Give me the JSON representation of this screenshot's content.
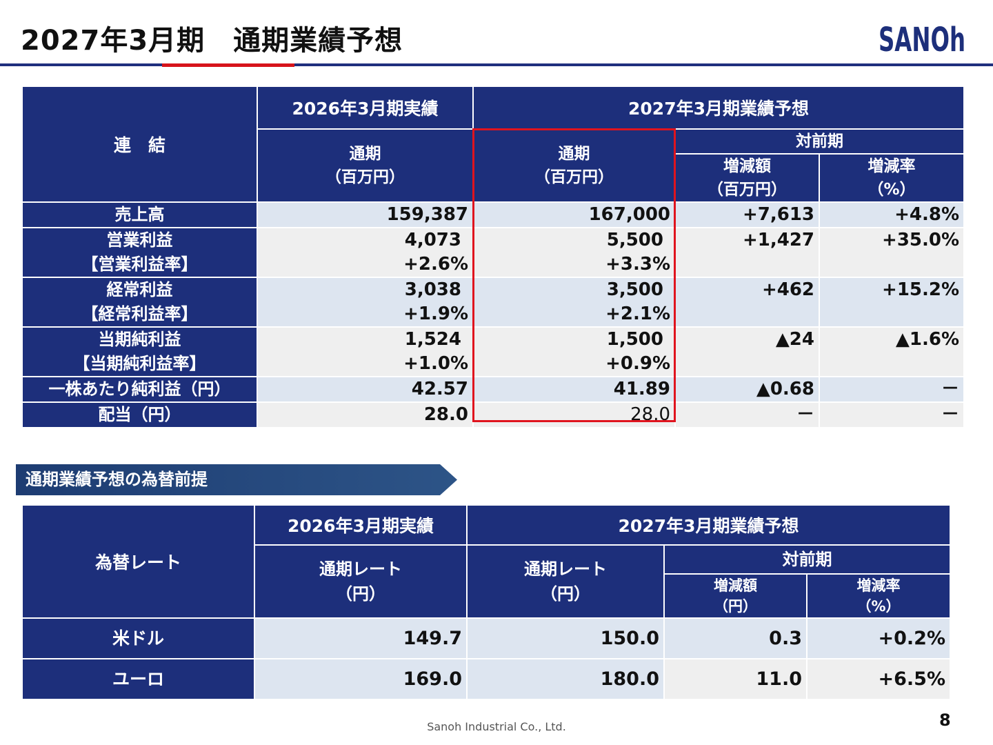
{
  "page": {
    "title": "2027年3月期　通期業績予想",
    "footer": "Sanoh Industrial Co., Ltd.",
    "page_number": "8"
  },
  "logo": {
    "text": "SANOH",
    "color": "#1d2f7b"
  },
  "colors": {
    "header_navy": "#1d2f7b",
    "accent_red": "#d7141b",
    "row_light_blue": "#dde5f0",
    "row_light_gray": "#efefef"
  },
  "forecast_table": {
    "corner": "連　結",
    "group_actual": "2026年3月期実績",
    "group_forecast": "2027年3月期業績予想",
    "sub_yoy": "対前期",
    "col_actual": [
      "通期",
      "（百万円）"
    ],
    "col_forecast": [
      "通期",
      "（百万円）"
    ],
    "col_change": [
      "増減額",
      "（百万円）"
    ],
    "col_rate": [
      "増減率",
      "（%）"
    ],
    "rows": [
      {
        "label": [
          "売上高"
        ],
        "actual": [
          "159,387"
        ],
        "forecast": [
          "167,000"
        ],
        "change": [
          "+7,613"
        ],
        "rate": [
          "+4.8%"
        ]
      },
      {
        "label": [
          "営業利益",
          "【営業利益率】"
        ],
        "actual": [
          "4,073",
          "+2.6%"
        ],
        "forecast": [
          "5,500",
          "+3.3%"
        ],
        "change": [
          "+1,427",
          ""
        ],
        "rate": [
          "+35.0%",
          ""
        ]
      },
      {
        "label": [
          "経常利益",
          "【経常利益率】"
        ],
        "actual": [
          "3,038",
          "+1.9%"
        ],
        "forecast": [
          "3,500",
          "+2.1%"
        ],
        "change": [
          "+462",
          ""
        ],
        "rate": [
          "+15.2%",
          ""
        ]
      },
      {
        "label": [
          "当期純利益",
          "【当期純利益率】"
        ],
        "actual": [
          "1,524",
          "+1.0%"
        ],
        "forecast": [
          "1,500",
          "+0.9%"
        ],
        "change": [
          "▲24",
          ""
        ],
        "rate": [
          "▲1.6%",
          ""
        ]
      },
      {
        "label": [
          "一株あたり純利益（円）"
        ],
        "actual": [
          "42.57"
        ],
        "forecast": [
          "41.89"
        ],
        "change": [
          "▲0.68"
        ],
        "rate": [
          "－"
        ]
      },
      {
        "label": [
          "配当（円）"
        ],
        "actual": [
          "28.0"
        ],
        "forecast": [
          "28.0"
        ],
        "change": [
          "－"
        ],
        "rate": [
          "－"
        ]
      }
    ]
  },
  "fx_section": {
    "banner": "通期業績予想の為替前提",
    "corner": "為替レート",
    "group_actual": "2026年3月期実績",
    "group_forecast": "2027年3月期業績予想",
    "sub_yoy": "対前期",
    "col_actual": [
      "通期レート",
      "（円）"
    ],
    "col_forecast": [
      "通期レート",
      "（円）"
    ],
    "col_change": [
      "増減額",
      "（円）"
    ],
    "col_rate": [
      "増減率",
      "（%）"
    ],
    "rows": [
      {
        "label": "米ドル",
        "actual": "149.7",
        "forecast": "150.0",
        "change": "0.3",
        "rate": "+0.2%"
      },
      {
        "label": "ユーロ",
        "actual": "169.0",
        "forecast": "180.0",
        "change": "11.0",
        "rate": "+6.5%"
      }
    ]
  }
}
